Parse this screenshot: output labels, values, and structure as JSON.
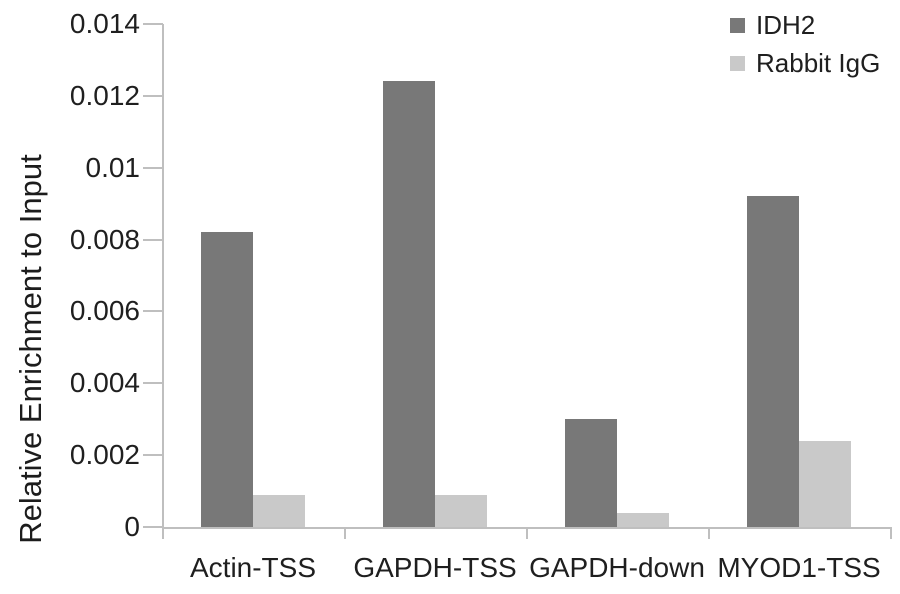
{
  "chart_data": {
    "type": "bar",
    "title": "",
    "xlabel": "",
    "ylabel": "Relative Enrichment to Input",
    "categories": [
      "Actin-TSS",
      "GAPDH-TSS",
      "GAPDH-down",
      "MYOD1-TSS"
    ],
    "series": [
      {
        "name": "IDH2",
        "color": "#787878",
        "values": [
          0.0082,
          0.0124,
          0.003,
          0.0092
        ]
      },
      {
        "name": "Rabbit IgG",
        "color": "#c9c9c9",
        "values": [
          0.0009,
          0.0009,
          0.0004,
          0.0024
        ]
      }
    ],
    "ylim": [
      0,
      0.014
    ],
    "yticks": [
      0,
      0.002,
      0.004,
      0.006,
      0.008,
      0.01,
      0.012,
      0.014
    ],
    "ytick_labels": [
      "0",
      "0.002",
      "0.004",
      "0.006",
      "0.008",
      "0.01",
      "0.012",
      "0.014"
    ],
    "grid": false,
    "legend_position": "top-right",
    "colors": {
      "axis": "#bfbfbf",
      "text": "#1f1f1f",
      "background": "#ffffff"
    }
  }
}
